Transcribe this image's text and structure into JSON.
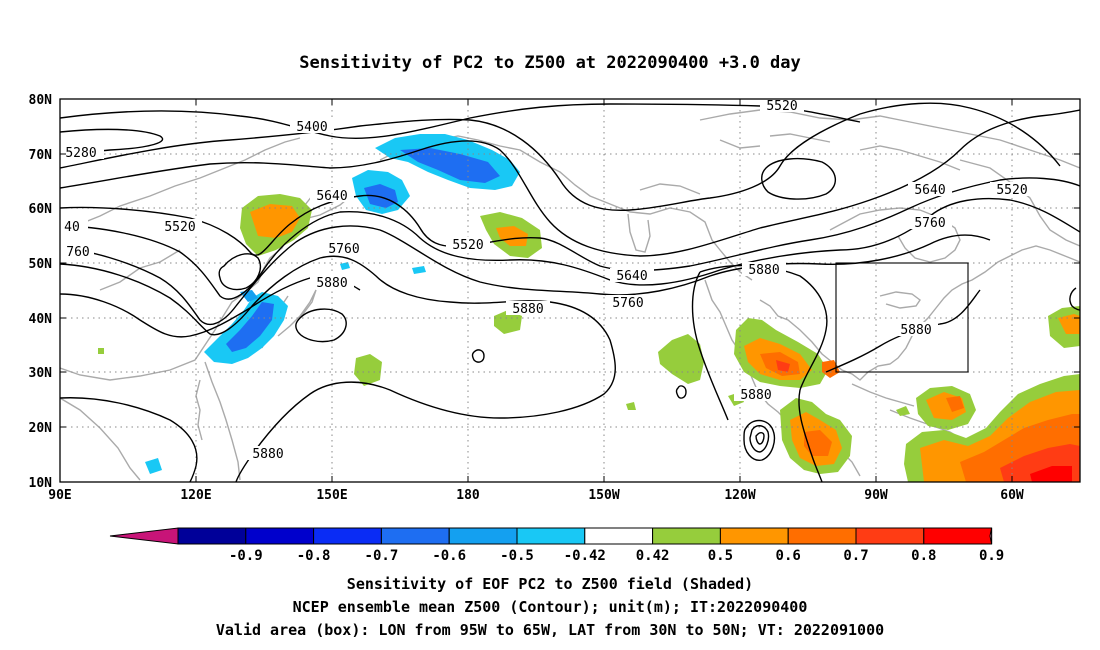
{
  "title": "Sensitivity of PC2 to Z500 at 2022090400 +3.0 day",
  "lat_labels": [
    "80N",
    "70N",
    "60N",
    "50N",
    "40N",
    "30N",
    "20N",
    "10N"
  ],
  "lon_labels": [
    "90E",
    "120E",
    "150E",
    "180",
    "150W",
    "120W",
    "90W",
    "60W"
  ],
  "contour_labels": [
    {
      "text": "5520"
    },
    {
      "text": "5400"
    },
    {
      "text": "5280"
    },
    {
      "text": "5640"
    },
    {
      "text": "40"
    },
    {
      "text": "5520"
    },
    {
      "text": "760"
    },
    {
      "text": "5760"
    },
    {
      "text": "5880"
    },
    {
      "text": "5520"
    },
    {
      "text": "5640"
    },
    {
      "text": "5760"
    },
    {
      "text": "5880"
    },
    {
      "text": "5880"
    },
    {
      "text": "5880"
    },
    {
      "text": "5880"
    },
    {
      "text": "5640"
    },
    {
      "text": "5520"
    },
    {
      "text": "5760"
    },
    {
      "text": "5880"
    }
  ],
  "colorbar": {
    "colors": [
      "#000099",
      "#0000cc",
      "#0a2cf5",
      "#1e6ef2",
      "#14a0f0",
      "#19c8f5",
      "#ffffff",
      "#96cd3c",
      "#ff9600",
      "#ff6e00",
      "#ff3c14",
      "#ff0000"
    ],
    "low_tri_color": "#c81478",
    "high_tri_color": "#ffa0c8",
    "tick_labels": [
      "-0.9",
      "-0.8",
      "-0.7",
      "-0.6",
      "-0.5",
      "-0.42",
      "0.42",
      "0.5",
      "0.6",
      "0.7",
      "0.8",
      "0.9"
    ]
  },
  "footer": {
    "line1": "Sensitivity of EOF PC2 to Z500 field (Shaded)",
    "line2": "NCEP ensemble mean Z500 (Contour); unit(m); IT:2022090400",
    "line3": "Valid area (box): LON from 95W to 65W, LAT from 30N to 50N; VT: 2022091000"
  },
  "valid_box": {
    "lon_from": "95W",
    "lon_to": "65W",
    "lat_from": "30N",
    "lat_to": "50N"
  }
}
